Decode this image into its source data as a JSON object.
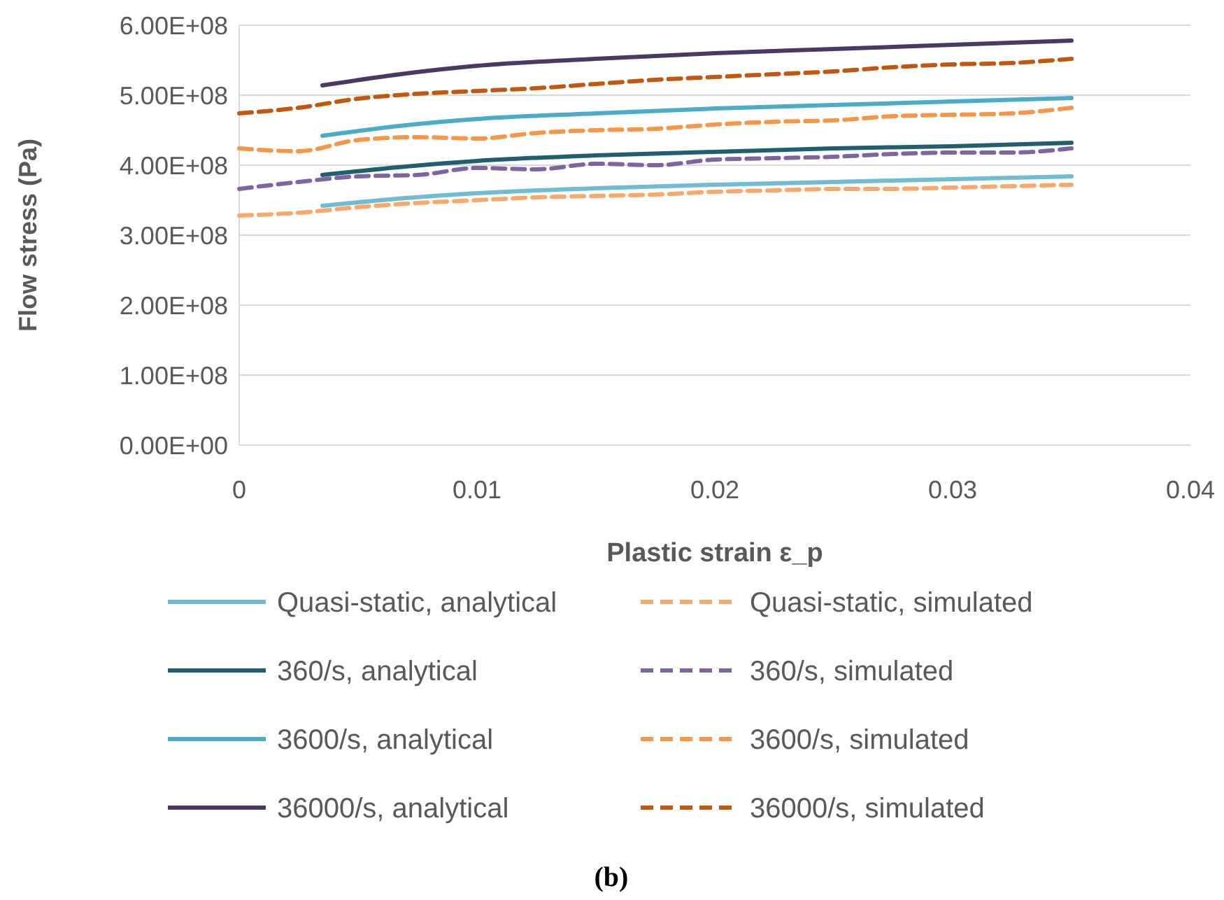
{
  "chart_data": {
    "type": "line",
    "xlabel": "Plastic strain ε_p",
    "ylabel": "Flow stress (Pa)",
    "xlim": [
      0,
      0.04
    ],
    "xticks": [
      0,
      0.01,
      0.02,
      0.03,
      0.04
    ],
    "ylim": [
      0,
      600000000
    ],
    "yticks": [
      {
        "value": 0,
        "label": "0.00E+00"
      },
      {
        "value": 100000000,
        "label": "1.00E+08"
      },
      {
        "value": 200000000,
        "label": "2.00E+08"
      },
      {
        "value": 300000000,
        "label": "3.00E+08"
      },
      {
        "value": 400000000,
        "label": "4.00E+08"
      },
      {
        "value": 500000000,
        "label": "5.00E+08"
      },
      {
        "value": 600000000,
        "label": "6.00E+08"
      }
    ],
    "grid": "y",
    "legend": "bottom",
    "annotations": [
      "(b)"
    ],
    "series": [
      {
        "name": "Quasi-static, analytical",
        "color": "#6fbcd3",
        "line_style": "solid",
        "x": [
          0.0035,
          0.007,
          0.01,
          0.015,
          0.02,
          0.025,
          0.03,
          0.035
        ],
        "values": [
          342000000,
          353000000,
          360000000,
          367000000,
          372000000,
          376000000,
          380000000,
          384000000
        ]
      },
      {
        "name": "Quasi-static, simulated",
        "color": "#f9a86b",
        "line_style": "dashed",
        "x": [
          0,
          0.0025,
          0.005,
          0.0075,
          0.01,
          0.0125,
          0.015,
          0.0175,
          0.02,
          0.0225,
          0.025,
          0.0275,
          0.03,
          0.0325,
          0.035
        ],
        "values": [
          328000000,
          332000000,
          340000000,
          346000000,
          350000000,
          354000000,
          356000000,
          358000000,
          362000000,
          364000000,
          366000000,
          366000000,
          368000000,
          370000000,
          372000000
        ]
      },
      {
        "name": "360/s, analytical",
        "color": "#215f6e",
        "line_style": "solid",
        "x": [
          0.0035,
          0.007,
          0.01,
          0.015,
          0.02,
          0.025,
          0.03,
          0.035
        ],
        "values": [
          386000000,
          398000000,
          406000000,
          414000000,
          419000000,
          424000000,
          427000000,
          432000000
        ]
      },
      {
        "name": "360/s, simulated",
        "color": "#8064a2",
        "line_style": "dashed",
        "x": [
          0,
          0.0025,
          0.005,
          0.0075,
          0.01,
          0.0125,
          0.015,
          0.0175,
          0.02,
          0.0225,
          0.025,
          0.0275,
          0.03,
          0.0325,
          0.035
        ],
        "values": [
          366000000,
          376000000,
          384000000,
          386000000,
          396000000,
          394000000,
          402000000,
          400000000,
          408000000,
          410000000,
          412000000,
          416000000,
          418000000,
          418000000,
          424000000
        ]
      },
      {
        "name": "3600/s, analytical",
        "color": "#4bacc6",
        "line_style": "solid",
        "x": [
          0.0035,
          0.007,
          0.01,
          0.015,
          0.02,
          0.025,
          0.03,
          0.035
        ],
        "values": [
          442000000,
          457000000,
          466000000,
          474000000,
          481000000,
          486000000,
          491000000,
          496000000
        ]
      },
      {
        "name": "3600/s, simulated",
        "color": "#f79646",
        "line_style": "dashed",
        "x": [
          0,
          0.0025,
          0.005,
          0.0075,
          0.01,
          0.0125,
          0.015,
          0.0175,
          0.02,
          0.0225,
          0.025,
          0.0275,
          0.03,
          0.0325,
          0.035
        ],
        "values": [
          424000000,
          420000000,
          436000000,
          440000000,
          438000000,
          446000000,
          450000000,
          452000000,
          458000000,
          462000000,
          464000000,
          470000000,
          472000000,
          474000000,
          482000000
        ]
      },
      {
        "name": "36000/s, analytical",
        "color": "#4a3a63",
        "line_style": "solid",
        "x": [
          0.0035,
          0.007,
          0.01,
          0.015,
          0.02,
          0.025,
          0.03,
          0.035
        ],
        "values": [
          514000000,
          531000000,
          542000000,
          552000000,
          560000000,
          566000000,
          572000000,
          578000000
        ]
      },
      {
        "name": "36000/s, simulated",
        "color": "#c0580f",
        "line_style": "dashed",
        "x": [
          0,
          0.0025,
          0.005,
          0.0075,
          0.01,
          0.0125,
          0.015,
          0.0175,
          0.02,
          0.0225,
          0.025,
          0.0275,
          0.03,
          0.0325,
          0.035
        ],
        "values": [
          474000000,
          482000000,
          495000000,
          502000000,
          506000000,
          510000000,
          516000000,
          522000000,
          526000000,
          530000000,
          534000000,
          540000000,
          544000000,
          546000000,
          552000000
        ]
      }
    ]
  }
}
